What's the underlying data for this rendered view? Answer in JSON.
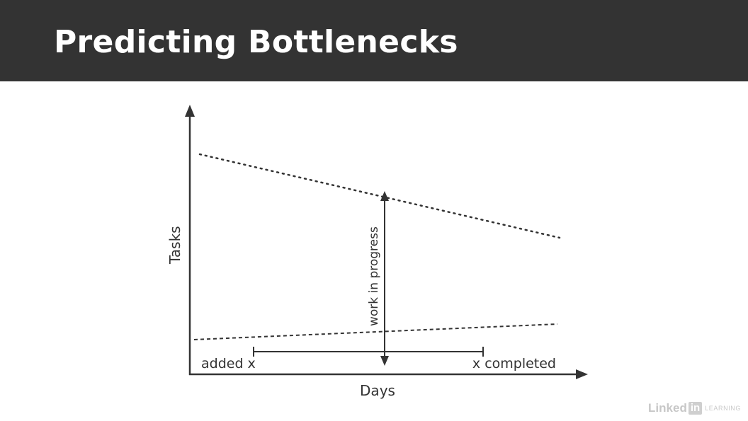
{
  "slide": {
    "title": "Predicting Bottlenecks"
  },
  "diagram": {
    "y_axis_label": "Tasks",
    "x_axis_label": "Days",
    "wip_label": "work in progress",
    "added_label": "added x",
    "completed_label": "x completed"
  },
  "watermark": {
    "brand": "Linked",
    "brand_box": "in",
    "product": "LEARNING"
  },
  "colors": {
    "title_bar": "#333333",
    "ink": "#333333",
    "background": "#ffffff"
  }
}
